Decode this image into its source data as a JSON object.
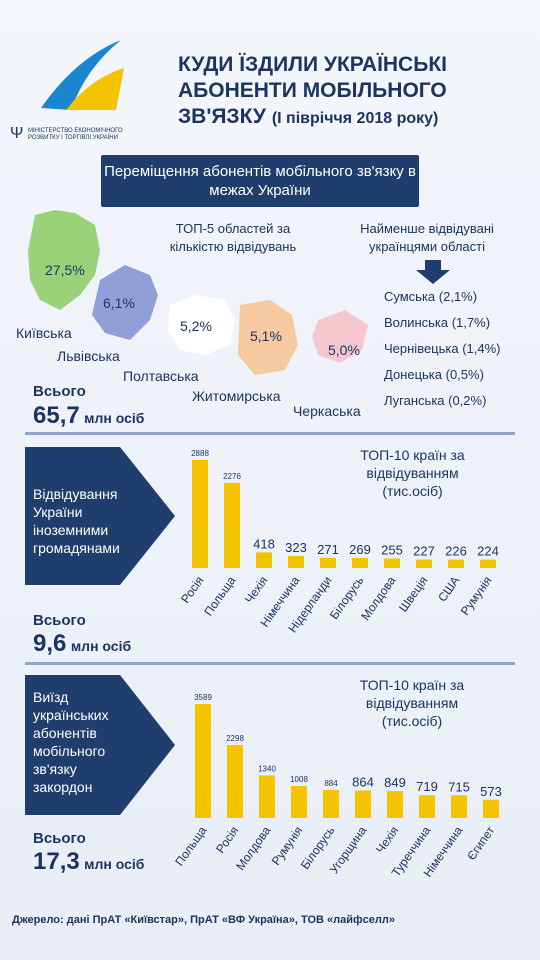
{
  "header": {
    "title_line1": "КУДИ ЇЗДИЛИ УКРАЇНСЬКІ",
    "title_line2": "АБОНЕНТИ МОБІЛЬНОГО",
    "title_line3": "ЗВ'ЯЗКУ",
    "period": "(І півріччя 2018 року)",
    "ministry": "МІНІСТЕРСТВО ЕКОНОМІЧНОГО РОЗВИТКУ І ТОРГІВЛІ УКРАЇНИ",
    "logo_color": "#1a86d0"
  },
  "section1": {
    "banner": "Переміщення абонентів мобільного зв'язку в межах України",
    "top5_title": "ТОП-5 областей за кількістю відвідувань",
    "least_title": "Найменше відвідувані українцями області",
    "total_label": "Всього",
    "total_value": "65,7",
    "total_unit": "млн осіб",
    "regions": [
      {
        "name": "Київська",
        "value": "27,5%",
        "color": "#9ad27a"
      },
      {
        "name": "Львівська",
        "value": "6,1%",
        "color": "#8f9fd8"
      },
      {
        "name": "Полтавська",
        "value": "5,2%",
        "color": "#ffffff"
      },
      {
        "name": "Житомирська",
        "value": "5,1%",
        "color": "#f6c9a0"
      },
      {
        "name": "Черкаська",
        "value": "5,0%",
        "color": "#f5c8cf"
      }
    ],
    "least": [
      "Сумська (2,1%)",
      "Волинська (1,7%)",
      "Чернівецька (1,4%)",
      "Донецька (0,5%)",
      "Луганська (0,2%)"
    ]
  },
  "section2": {
    "arrow_text": "Відвідування України іноземними громадянами",
    "chart_title": "ТОП-10 країн за відвідуванням (тис.осіб)",
    "total_label": "Всього",
    "total_value": "9,6",
    "total_unit": "млн осіб"
  },
  "section3": {
    "arrow_text": "Виїзд українських абонентів мобільного зв'язку закордон",
    "chart_title": "ТОП-10 країн за відвідуванням (тис.осіб)",
    "total_label": "Всього",
    "total_value": "17,3",
    "total_unit": "млн осіб"
  },
  "source": "Джерело: дані ПрАТ «Київстар», ПрАТ «ВФ Україна», ТОВ «лайфселл»",
  "chart_data": [
    {
      "type": "bar",
      "title": "ТОП-10 країн за відвідуванням (тис.осіб)",
      "categories": [
        "Росія",
        "Польща",
        "Чехія",
        "Німеччина",
        "Нідерланди",
        "Білорусь",
        "Молдова",
        "Швеція",
        "США",
        "Румунія"
      ],
      "values": [
        2888,
        2276,
        418,
        323,
        271,
        269,
        255,
        227,
        226,
        224
      ],
      "color": "#f5c400"
    },
    {
      "type": "bar",
      "title": "ТОП-10 країн за відвідуванням (тис.осіб)",
      "categories": [
        "Польща",
        "Росія",
        "Молдова",
        "Румунія",
        "Білорусь",
        "Угорщина",
        "Чехія",
        "Туреччина",
        "Німеччина",
        "Єгипет"
      ],
      "values": [
        3589,
        2298,
        1340,
        1008,
        884,
        864,
        849,
        719,
        715,
        573
      ],
      "color": "#f5c400"
    }
  ]
}
